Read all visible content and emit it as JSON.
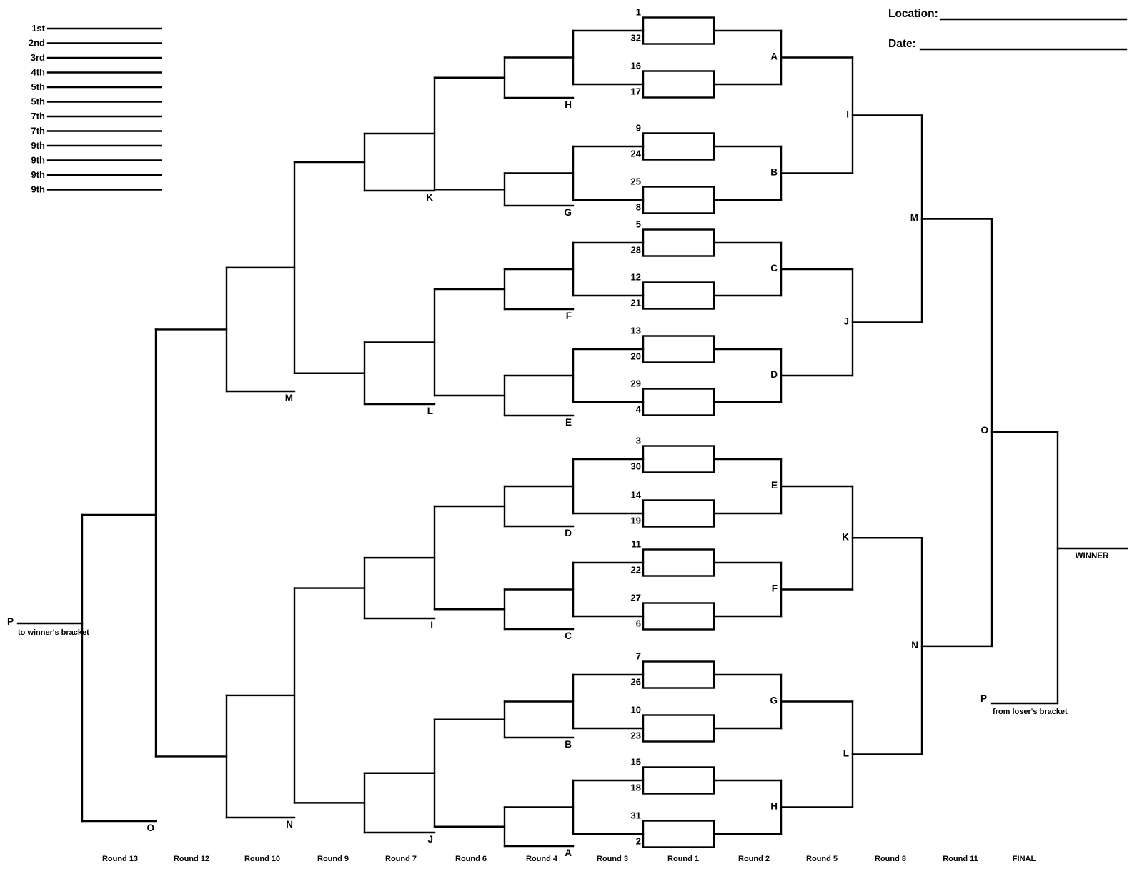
{
  "page": {
    "background": "#ffffff",
    "ink": "#000000"
  },
  "placements": {
    "items": [
      "1st",
      "2nd",
      "3rd",
      "4th",
      "5th",
      "5th",
      "7th",
      "7th",
      "9th",
      "9th",
      "9th",
      "9th"
    ]
  },
  "header": {
    "location_label": "Location:",
    "location_value": "",
    "date_label": "Date:",
    "date_value": ""
  },
  "bracket": {
    "format": "32-team double elimination",
    "seed_pairs": [
      [
        1,
        32
      ],
      [
        16,
        17
      ],
      [
        9,
        24
      ],
      [
        25,
        8
      ],
      [
        5,
        28
      ],
      [
        12,
        21
      ],
      [
        13,
        20
      ],
      [
        29,
        4
      ],
      [
        3,
        30
      ],
      [
        14,
        19
      ],
      [
        11,
        22
      ],
      [
        27,
        6
      ],
      [
        7,
        26
      ],
      [
        10,
        23
      ],
      [
        15,
        18
      ],
      [
        31,
        2
      ]
    ],
    "winner_rounds": {
      "round2_letters": [
        "A",
        "B",
        "C",
        "D",
        "E",
        "F",
        "G",
        "H"
      ],
      "round5_letters": [
        "I",
        "J",
        "K",
        "L"
      ],
      "round8_letters": [
        "M",
        "N"
      ],
      "round11_letter": "O"
    },
    "loser_rounds": {
      "round4_drop_letters": [
        "H",
        "G",
        "F",
        "E",
        "D",
        "C",
        "B",
        "A"
      ],
      "round7_drop_letters": [
        "K",
        "L",
        "I",
        "J"
      ],
      "round10_drop_letters": [
        "M",
        "N"
      ],
      "round13_drop_letter": "O"
    },
    "winner_label": "WINNER",
    "loser_exit": {
      "letter": "P",
      "caption": "to winner's bracket"
    },
    "final_entry": {
      "letter": "P",
      "caption": "from loser's bracket"
    }
  },
  "round_labels": [
    "Round 13",
    "Round 12",
    "Round 10",
    "Round 9",
    "Round 7",
    "Round 6",
    "Round 4",
    "Round 3",
    "Round 1",
    "Round 2",
    "Round 5",
    "Round 8",
    "Round 11",
    "FINAL"
  ]
}
